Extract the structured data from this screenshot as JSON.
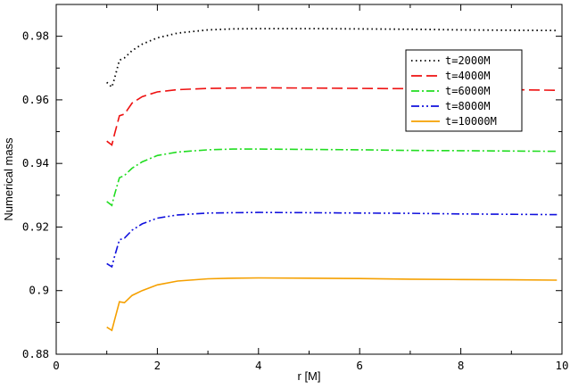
{
  "chart_data": {
    "type": "line",
    "title": "",
    "xlabel": "r [M]",
    "ylabel": "Numerical mass",
    "xlim": [
      0,
      10
    ],
    "ylim": [
      0.88,
      0.99
    ],
    "xticks": [
      0,
      2,
      4,
      6,
      8,
      10
    ],
    "xtick_labels": [
      "0",
      "2",
      "4",
      "6",
      "8",
      "10"
    ],
    "yticks": [
      0.88,
      0.9,
      0.92,
      0.94,
      0.96,
      0.98
    ],
    "ytick_labels": [
      "0.88",
      "0.9",
      "0.92",
      "0.94",
      "0.96",
      "0.98"
    ],
    "grid": false,
    "legend_position": "top-right",
    "series": [
      {
        "name": "t=2000M",
        "color": "#000000",
        "style": "dotted",
        "x": [
          1.0,
          1.1,
          1.15,
          1.25,
          1.35,
          1.5,
          1.7,
          2.0,
          2.4,
          3.0,
          3.5,
          4.0,
          5.0,
          6.0,
          7.0,
          8.0,
          9.0,
          9.9
        ],
        "y": [
          0.9655,
          0.964,
          0.9665,
          0.9725,
          0.9732,
          0.9755,
          0.9775,
          0.9795,
          0.981,
          0.982,
          0.9823,
          0.9824,
          0.9824,
          0.9823,
          0.9822,
          0.982,
          0.9819,
          0.9818
        ]
      },
      {
        "name": "t=4000M",
        "color": "#ee1111",
        "style": "dashed",
        "x": [
          1.0,
          1.1,
          1.15,
          1.25,
          1.35,
          1.5,
          1.7,
          2.0,
          2.4,
          3.0,
          3.5,
          4.0,
          5.0,
          6.0,
          7.0,
          8.0,
          9.0,
          9.9
        ],
        "y": [
          0.947,
          0.9458,
          0.949,
          0.955,
          0.9555,
          0.959,
          0.961,
          0.9625,
          0.9632,
          0.9636,
          0.9637,
          0.9638,
          0.9637,
          0.9636,
          0.9635,
          0.9633,
          0.9632,
          0.963
        ]
      },
      {
        "name": "t=6000M",
        "color": "#22dd22",
        "style": "dashdot",
        "x": [
          1.0,
          1.1,
          1.15,
          1.25,
          1.35,
          1.5,
          1.7,
          2.0,
          2.4,
          3.0,
          3.5,
          4.0,
          5.0,
          6.0,
          7.0,
          8.0,
          9.0,
          9.9
        ],
        "y": [
          0.928,
          0.9268,
          0.93,
          0.9355,
          0.9362,
          0.9385,
          0.9405,
          0.9425,
          0.9436,
          0.9443,
          0.9445,
          0.9445,
          0.9444,
          0.9443,
          0.9441,
          0.944,
          0.9439,
          0.9438
        ]
      },
      {
        "name": "t=8000M",
        "color": "#1111dd",
        "style": "dashdotdot",
        "x": [
          1.0,
          1.1,
          1.15,
          1.25,
          1.35,
          1.5,
          1.7,
          2.0,
          2.4,
          3.0,
          3.5,
          4.0,
          5.0,
          6.0,
          7.0,
          8.0,
          9.0,
          9.9
        ],
        "y": [
          0.9085,
          0.9075,
          0.9105,
          0.916,
          0.9165,
          0.919,
          0.921,
          0.9228,
          0.9238,
          0.9244,
          0.9245,
          0.9246,
          0.9245,
          0.9244,
          0.9243,
          0.9241,
          0.924,
          0.9239
        ]
      },
      {
        "name": "t=10000M",
        "color": "#f5a000",
        "style": "solid",
        "x": [
          1.0,
          1.1,
          1.15,
          1.25,
          1.35,
          1.5,
          1.7,
          2.0,
          2.4,
          3.0,
          3.5,
          4.0,
          5.0,
          6.0,
          7.0,
          8.0,
          9.0,
          9.9
        ],
        "y": [
          0.8885,
          0.8875,
          0.8905,
          0.8965,
          0.8962,
          0.8985,
          0.9,
          0.9018,
          0.903,
          0.9037,
          0.9039,
          0.904,
          0.9039,
          0.9038,
          0.9036,
          0.9035,
          0.9034,
          0.9033
        ]
      }
    ]
  }
}
